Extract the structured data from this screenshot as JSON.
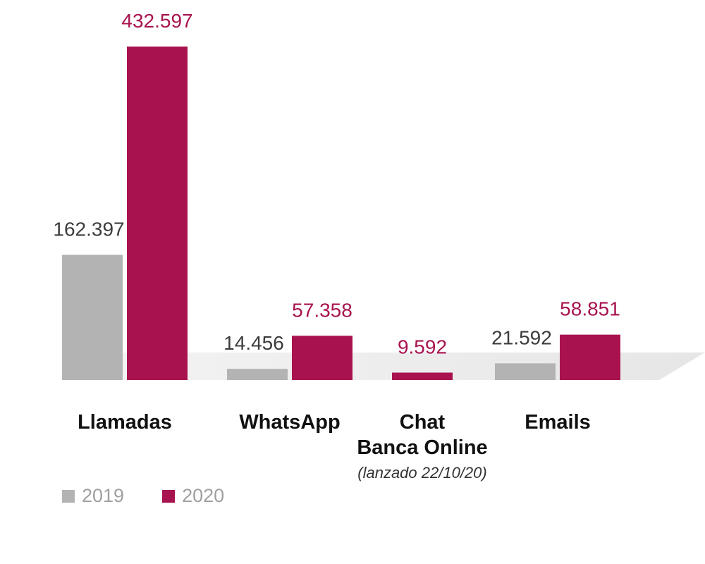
{
  "chart_data": {
    "type": "bar",
    "categories": [
      "Llamadas",
      "WhatsApp",
      "Chat\nBanca Online",
      "Emails"
    ],
    "category_lines": [
      [
        "Llamadas"
      ],
      [
        "WhatsApp"
      ],
      [
        "Chat",
        "Banca Online"
      ],
      [
        "Emails"
      ]
    ],
    "category_notes": [
      "",
      "",
      "(lanzado 22/10/20)",
      ""
    ],
    "series": [
      {
        "name": "2019",
        "values": [
          162397,
          14456,
          null,
          21592
        ],
        "labels": [
          "162.397",
          "14.456",
          "",
          "21.592"
        ],
        "color": "#b3b3b3",
        "label_color": "#3c3c3c"
      },
      {
        "name": "2020",
        "values": [
          432597,
          57358,
          9592,
          58851
        ],
        "labels": [
          "432.597",
          "57.358",
          "9.592",
          "58.851"
        ],
        "color": "#a8134f",
        "label_color": "#a8134f"
      }
    ],
    "ylim": [
      0,
      432597
    ],
    "grid": false,
    "legend_position": "bottom-left",
    "title": "",
    "xlabel": "",
    "ylabel": ""
  }
}
